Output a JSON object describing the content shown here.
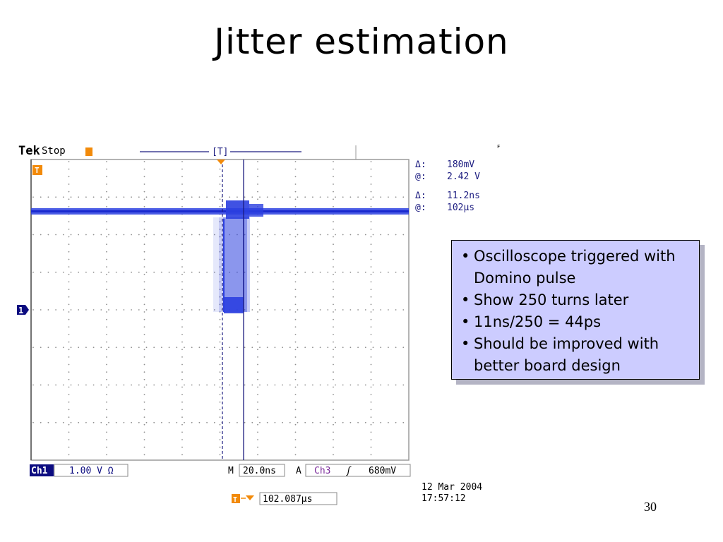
{
  "slide": {
    "title": "Jitter estimation",
    "page_number": "30"
  },
  "scope": {
    "brand": "Tek",
    "run_state": "Stop",
    "trigger_bracket": "[T]",
    "ref_marker": "F",
    "cursor_amplitude": {
      "delta_label": "Δ:",
      "delta_value": "180mV",
      "at_label": "@:",
      "at_value": "2.42 V"
    },
    "cursor_time": {
      "delta_label": "Δ:",
      "delta_value": "11.2ns",
      "at_label": "@:",
      "at_value": "102μs"
    },
    "channel_marker": "1",
    "trigger_marker": "T",
    "bottom_bar": {
      "channel": "Ch1",
      "volts_per_div": "1.00 V Ω",
      "time_prefix": "M",
      "time_per_div": "20.0ns",
      "trigger_prefix": "A",
      "trigger_source": "Ch3",
      "trigger_slope": "ʃ",
      "trigger_level": "680mV"
    },
    "trigger_position": "102.087μs",
    "date": "12 Mar  2004",
    "time": "17:57:12",
    "colors": {
      "trace": "#2b3fe0",
      "cursor": "#1c1c80",
      "trigger": "#f28a0a",
      "channel": "#0c0c80",
      "label": "#7a2a9a"
    }
  },
  "callout": {
    "bullets": [
      "Oscilloscope triggered with Domino pulse",
      "Show 250 turns later",
      "11ns/250 = 44ps",
      "Should be improved with better board design"
    ]
  }
}
